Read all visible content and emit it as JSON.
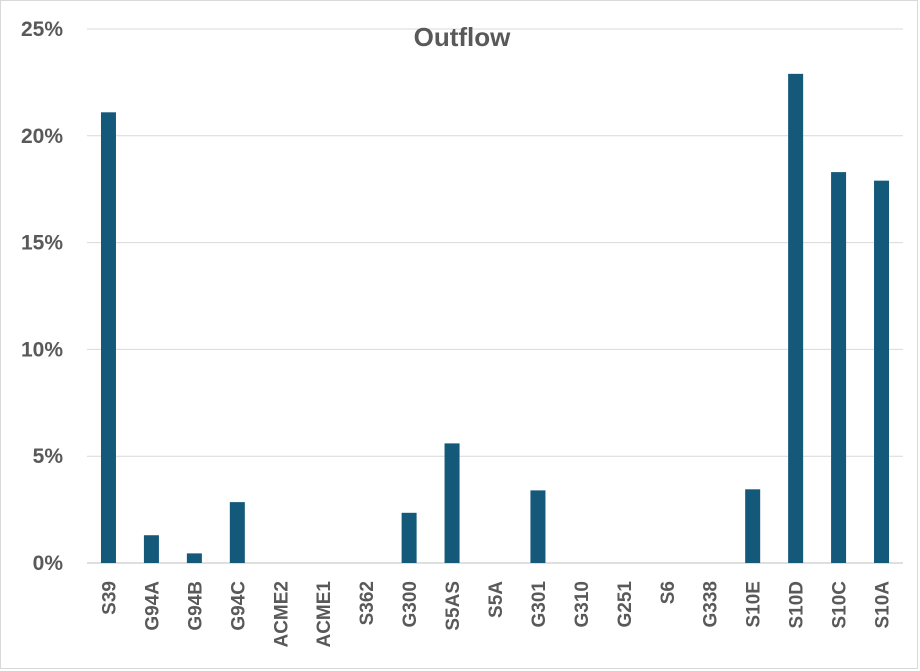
{
  "chart_data": {
    "type": "bar",
    "title": "Outflow",
    "xlabel": "",
    "ylabel": "",
    "ylim": [
      0,
      25
    ],
    "yticks": [
      0,
      5,
      10,
      15,
      20,
      25
    ],
    "ytick_labels": [
      "0%",
      "5%",
      "10%",
      "15%",
      "20%",
      "25%"
    ],
    "categories": [
      "S39",
      "G94A",
      "G94B",
      "G94C",
      "ACME2",
      "ACME1",
      "S362",
      "G300",
      "S5AS",
      "S5A",
      "G301",
      "G310",
      "G251",
      "S6",
      "G338",
      "S10E",
      "S10D",
      "S10C",
      "S10A"
    ],
    "values": [
      21.1,
      1.3,
      0.45,
      2.85,
      0,
      0,
      0,
      2.35,
      5.6,
      0,
      3.4,
      0,
      0,
      0,
      0,
      3.45,
      22.9,
      18.3,
      17.9
    ],
    "grid": true,
    "legend": "none",
    "bar_color": "#14587a"
  }
}
